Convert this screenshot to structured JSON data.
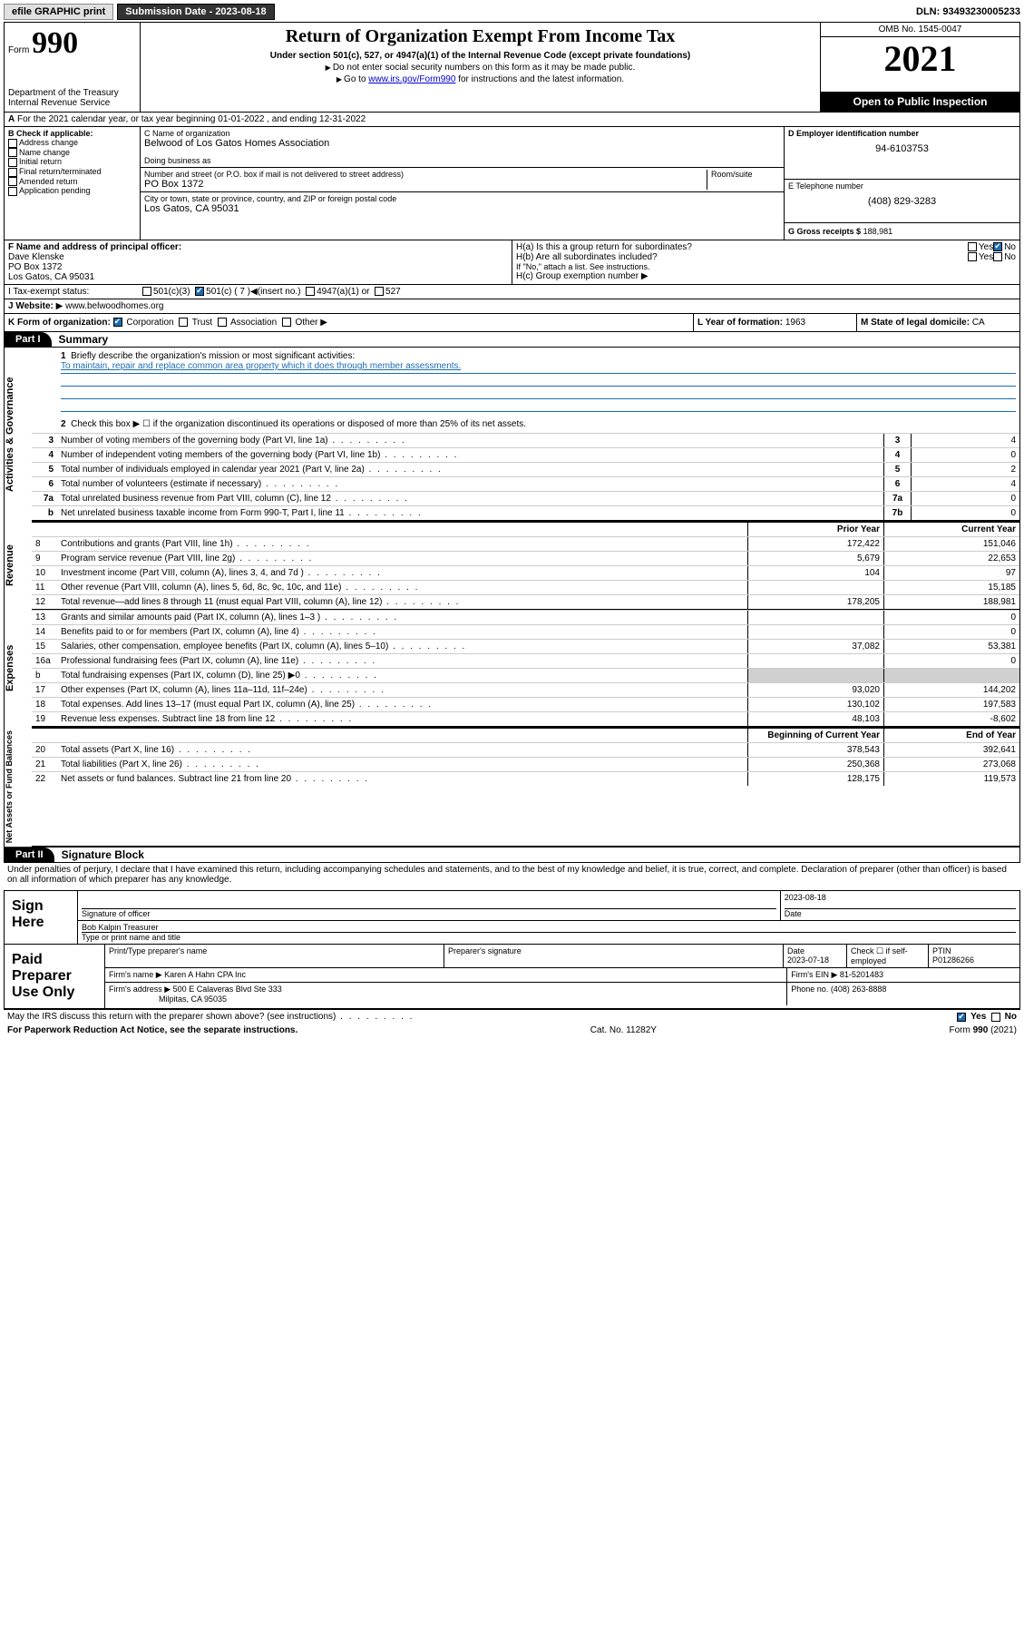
{
  "topbar": {
    "efile": "efile GRAPHIC print",
    "submission_label": "Submission Date - 2023-08-18",
    "dln": "DLN: 93493230005233"
  },
  "header": {
    "form_label": "Form",
    "form_number": "990",
    "title": "Return of Organization Exempt From Income Tax",
    "subtitle": "Under section 501(c), 527, or 4947(a)(1) of the Internal Revenue Code (except private foundations)",
    "note1": "Do not enter social security numbers on this form as it may be made public.",
    "note2_pre": "Go to ",
    "note2_link": "www.irs.gov/Form990",
    "note2_post": " for instructions and the latest information.",
    "dept": "Department of the Treasury",
    "irs": "Internal Revenue Service",
    "omb": "OMB No. 1545-0047",
    "year": "2021",
    "inspection": "Open to Public Inspection"
  },
  "section_a": "For the 2021 calendar year, or tax year beginning 01-01-2022   , and ending 12-31-2022",
  "col_b": {
    "title": "B Check if applicable:",
    "items": [
      "Address change",
      "Name change",
      "Initial return",
      "Final return/terminated",
      "Amended return",
      "Application pending"
    ]
  },
  "col_c": {
    "name_label": "C Name of organization",
    "name": "Belwood of Los Gatos Homes Association",
    "dba_label": "Doing business as",
    "street_label": "Number and street (or P.O. box if mail is not delivered to street address)",
    "room_label": "Room/suite",
    "street": "PO Box 1372",
    "city_label": "City or town, state or province, country, and ZIP or foreign postal code",
    "city": "Los Gatos, CA  95031"
  },
  "col_d": {
    "ein_label": "D Employer identification number",
    "ein": "94-6103753",
    "phone_label": "E Telephone number",
    "phone": "(408) 829-3283",
    "gross_label": "G Gross receipts $",
    "gross": "188,981"
  },
  "row_f": {
    "label": "F Name and address of principal officer:",
    "name": "Dave Klenske",
    "addr1": "PO Box 1372",
    "addr2": "Los Gatos, CA  95031"
  },
  "row_h": {
    "ha": "H(a)  Is this a group return for subordinates?",
    "hb": "H(b)  Are all subordinates included?",
    "hb_note": "If \"No,\" attach a list. See instructions.",
    "hc": "H(c)  Group exemption number",
    "yes": "Yes",
    "no": "No"
  },
  "row_i": {
    "label": "I   Tax-exempt status:",
    "opt1": "501(c)(3)",
    "opt2": "501(c) ( 7 )",
    "opt2_note": "(insert no.)",
    "opt3": "4947(a)(1) or",
    "opt4": "527"
  },
  "row_j": {
    "label": "J   Website:",
    "val": "www.belwoodhomes.org"
  },
  "row_k": {
    "label": "K Form of organization:",
    "opts": [
      "Corporation",
      "Trust",
      "Association",
      "Other"
    ],
    "l_label": "L Year of formation:",
    "l_val": "1963",
    "m_label": "M State of legal domicile:",
    "m_val": "CA"
  },
  "part1": {
    "hdr": "Part I",
    "title": "Summary",
    "q1": "Briefly describe the organization's mission or most significant activities:",
    "mission": "To maintain, repair and replace common area property which it does through member assessments.",
    "q2": "Check this box ▶ ☐  if the organization discontinued its operations or disposed of more than 25% of its net assets.",
    "lines_ag": [
      {
        "n": "3",
        "t": "Number of voting members of the governing body (Part VI, line 1a)",
        "b": "3",
        "v": "4"
      },
      {
        "n": "4",
        "t": "Number of independent voting members of the governing body (Part VI, line 1b)",
        "b": "4",
        "v": "0"
      },
      {
        "n": "5",
        "t": "Total number of individuals employed in calendar year 2021 (Part V, line 2a)",
        "b": "5",
        "v": "2"
      },
      {
        "n": "6",
        "t": "Total number of volunteers (estimate if necessary)",
        "b": "6",
        "v": "4"
      },
      {
        "n": "7a",
        "t": "Total unrelated business revenue from Part VIII, column (C), line 12",
        "b": "7a",
        "v": "0"
      },
      {
        "n": "b",
        "t": "Net unrelated business taxable income from Form 990-T, Part I, line 11",
        "b": "7b",
        "v": "0"
      }
    ],
    "col_prior": "Prior Year",
    "col_current": "Current Year",
    "lines_rev": [
      {
        "n": "8",
        "t": "Contributions and grants (Part VIII, line 1h)",
        "p": "172,422",
        "c": "151,046"
      },
      {
        "n": "9",
        "t": "Program service revenue (Part VIII, line 2g)",
        "p": "5,679",
        "c": "22,653"
      },
      {
        "n": "10",
        "t": "Investment income (Part VIII, column (A), lines 3, 4, and 7d )",
        "p": "104",
        "c": "97"
      },
      {
        "n": "11",
        "t": "Other revenue (Part VIII, column (A), lines 5, 6d, 8c, 9c, 10c, and 11e)",
        "p": "",
        "c": "15,185"
      },
      {
        "n": "12",
        "t": "Total revenue—add lines 8 through 11 (must equal Part VIII, column (A), line 12)",
        "p": "178,205",
        "c": "188,981"
      }
    ],
    "lines_exp": [
      {
        "n": "13",
        "t": "Grants and similar amounts paid (Part IX, column (A), lines 1–3 )",
        "p": "",
        "c": "0"
      },
      {
        "n": "14",
        "t": "Benefits paid to or for members (Part IX, column (A), line 4)",
        "p": "",
        "c": "0"
      },
      {
        "n": "15",
        "t": "Salaries, other compensation, employee benefits (Part IX, column (A), lines 5–10)",
        "p": "37,082",
        "c": "53,381"
      },
      {
        "n": "16a",
        "t": "Professional fundraising fees (Part IX, column (A), line 11e)",
        "p": "",
        "c": "0"
      },
      {
        "n": "b",
        "t": "Total fundraising expenses (Part IX, column (D), line 25) ▶0",
        "p": "",
        "c": ""
      },
      {
        "n": "17",
        "t": "Other expenses (Part IX, column (A), lines 11a–11d, 11f–24e)",
        "p": "93,020",
        "c": "144,202"
      },
      {
        "n": "18",
        "t": "Total expenses. Add lines 13–17 (must equal Part IX, column (A), line 25)",
        "p": "130,102",
        "c": "197,583"
      },
      {
        "n": "19",
        "t": "Revenue less expenses. Subtract line 18 from line 12",
        "p": "48,103",
        "c": "-8,602"
      }
    ],
    "col_begin": "Beginning of Current Year",
    "col_end": "End of Year",
    "lines_net": [
      {
        "n": "20",
        "t": "Total assets (Part X, line 16)",
        "p": "378,543",
        "c": "392,641"
      },
      {
        "n": "21",
        "t": "Total liabilities (Part X, line 26)",
        "p": "250,368",
        "c": "273,068"
      },
      {
        "n": "22",
        "t": "Net assets or fund balances. Subtract line 21 from line 20",
        "p": "128,175",
        "c": "119,573"
      }
    ],
    "side_ag": "Activities & Governance",
    "side_rev": "Revenue",
    "side_exp": "Expenses",
    "side_net": "Net Assets or Fund Balances"
  },
  "part2": {
    "hdr": "Part II",
    "title": "Signature Block",
    "decl": "Under penalties of perjury, I declare that I have examined this return, including accompanying schedules and statements, and to the best of my knowledge and belief, it is true, correct, and complete. Declaration of preparer (other than officer) is based on all information of which preparer has any knowledge."
  },
  "sign": {
    "label": "Sign Here",
    "sig_label": "Signature of officer",
    "date": "2023-08-18",
    "date_label": "Date",
    "name": "Bob Kalpin  Treasurer",
    "name_label": "Type or print name and title"
  },
  "prep": {
    "label": "Paid Preparer Use Only",
    "col1": "Print/Type preparer's name",
    "col2": "Preparer's signature",
    "col3_label": "Date",
    "col3": "2023-07-18",
    "col4_label": "Check ☐  if self-employed",
    "col5_label": "PTIN",
    "col5": "P01286266",
    "firm_label": "Firm's name    ▶",
    "firm": "Karen A Hahn CPA Inc",
    "ein_label": "Firm's EIN ▶",
    "ein": "81-5201483",
    "addr_label": "Firm's address ▶",
    "addr1": "500 E Calaveras Blvd Ste 333",
    "addr2": "Milpitas, CA  95035",
    "phone_label": "Phone no.",
    "phone": "(408) 263-8888"
  },
  "footer": {
    "discuss": "May the IRS discuss this return with the preparer shown above? (see instructions)",
    "yes": "Yes",
    "no": "No",
    "paperwork": "For Paperwork Reduction Act Notice, see the separate instructions.",
    "cat": "Cat. No. 11282Y",
    "form": "Form 990 (2021)"
  }
}
